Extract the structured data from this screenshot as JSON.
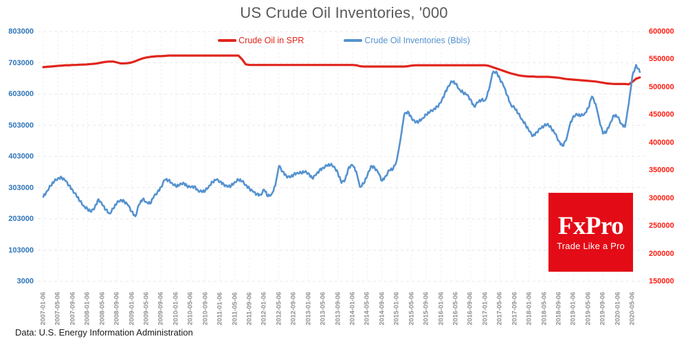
{
  "title": "US Crude Oil Inventories, '000",
  "legend": {
    "items": [
      {
        "label": "Crude Oil in SPR",
        "color": "#e0251c"
      },
      {
        "label": "Crude Oil Inventories (Bbls)",
        "color": "#5592cf"
      }
    ]
  },
  "footer": "Data: U.S. Energy Information Administration",
  "logo": {
    "name": "FxPro",
    "tagline": "Trade Like a Pro",
    "bg_color": "#e30b16"
  },
  "axes": {
    "left": {
      "color": "#2d74b8",
      "ticks": [
        "803000",
        "703000",
        "603000",
        "503000",
        "403000",
        "303000",
        "203000",
        "103000",
        "3000"
      ]
    },
    "right": {
      "color": "#fe1a0e",
      "ticks": [
        "600000",
        "550000",
        "500000",
        "450000",
        "400000",
        "350000",
        "300000",
        "250000",
        "200000",
        "150000"
      ]
    },
    "x": {
      "color": "#8f8f8f",
      "labels": [
        "2007-01-06",
        "2007-05-06",
        "2007-09-06",
        "2008-01-06",
        "2008-05-06",
        "2008-09-06",
        "2009-01-06",
        "2009-05-06",
        "2009-09-06",
        "2010-01-06",
        "2010-05-06",
        "2010-09-06",
        "2011-01-06",
        "2011-05-06",
        "2011-09-06",
        "2012-01-06",
        "2012-05-06",
        "2012-09-06",
        "2013-01-06",
        "2013-05-06",
        "2013-09-06",
        "2014-01-06",
        "2014-05-06",
        "2014-09-06",
        "2015-01-06",
        "2015-05-06",
        "2015-09-06",
        "2016-01-06",
        "2016-05-06",
        "2016-09-06",
        "2017-01-06",
        "2017-05-06",
        "2017-09-06",
        "2018-01-06",
        "2018-05-06",
        "2018-09-06",
        "2019-01-06",
        "2019-05-06",
        "2019-09-06",
        "2020-01-06",
        "2020-05-06"
      ]
    }
  },
  "chart_data": {
    "type": "line",
    "title": "US Crude Oil Inventories, '000",
    "unit": "thousand barrels",
    "x_monthly_start": "2007-01",
    "x_monthly_end": "2020-07",
    "left_range": [
      3000,
      803000
    ],
    "right_range": [
      150000,
      600000
    ],
    "grid": true,
    "legend_position": "top",
    "series": [
      {
        "name": "Crude Oil in SPR",
        "axis": "left",
        "color": "#e0251c",
        "values": [
          689000,
          690000,
          691000,
          692000,
          693000,
          694000,
          695000,
          695000,
          696000,
          696000,
          697000,
          697000,
          698000,
          699000,
          700000,
          702000,
          704000,
          706000,
          707000,
          707000,
          704000,
          701000,
          701000,
          702000,
          704000,
          708000,
          713000,
          717000,
          720000,
          722000,
          723000,
          724000,
          724000,
          725000,
          726000,
          726000,
          726000,
          726000,
          726000,
          726000,
          726000,
          726000,
          726000,
          726000,
          726000,
          726000,
          726000,
          726000,
          726000,
          726000,
          726000,
          726000,
          726000,
          726000,
          714000,
          698000,
          696000,
          696000,
          696000,
          696000,
          696000,
          696000,
          696000,
          696000,
          696000,
          696000,
          696000,
          696000,
          696000,
          696000,
          696000,
          696000,
          696000,
          696000,
          696000,
          696000,
          696000,
          696000,
          696000,
          696000,
          696000,
          696000,
          696000,
          696000,
          696000,
          695000,
          692000,
          691000,
          691000,
          691000,
          691000,
          691000,
          691000,
          691000,
          691000,
          691000,
          691000,
          691000,
          691000,
          692000,
          694000,
          695000,
          695000,
          695000,
          695000,
          695000,
          695000,
          695000,
          695000,
          695000,
          695000,
          695000,
          695000,
          695000,
          695000,
          695000,
          695000,
          695000,
          695000,
          695000,
          695000,
          693000,
          689000,
          685000,
          681000,
          677000,
          673000,
          669000,
          666000,
          663000,
          661000,
          660000,
          659000,
          659000,
          658000,
          658000,
          658000,
          658000,
          657000,
          656000,
          655000,
          653000,
          651000,
          650000,
          649000,
          648000,
          647000,
          646000,
          645000,
          644000,
          643000,
          641000,
          639000,
          637000,
          636000,
          635000,
          635000,
          635000,
          635000,
          634000,
          642000,
          652000,
          656000
        ]
      },
      {
        "name": "Crude Oil Inventories (Bbls)",
        "axis": "right",
        "color": "#5592cf",
        "values": [
          302000,
          313000,
          322000,
          330000,
          336000,
          337000,
          331000,
          323000,
          314000,
          304000,
          294000,
          286000,
          280000,
          275000,
          284000,
          298000,
          288000,
          279000,
          272000,
          281000,
          291000,
          297000,
          294000,
          287000,
          276000,
          267000,
          288000,
          298000,
          293000,
          290000,
          302000,
          311000,
          320000,
          333000,
          332000,
          327000,
          321000,
          323000,
          328000,
          322000,
          319000,
          321000,
          314000,
          311000,
          313000,
          322000,
          329000,
          333000,
          330000,
          325000,
          320000,
          322000,
          329000,
          333000,
          330000,
          324000,
          317000,
          311000,
          307000,
          306000,
          315000,
          303000,
          307000,
          322000,
          358000,
          348000,
          340000,
          337000,
          342000,
          346000,
          345000,
          347000,
          345000,
          336000,
          341000,
          350000,
          355000,
          358000,
          360000,
          357000,
          345000,
          327000,
          334000,
          356000,
          359000,
          348000,
          320000,
          326000,
          340000,
          358000,
          355000,
          345000,
          331000,
          340000,
          350000,
          352000,
          368000,
          405000,
          450000,
          456000,
          445000,
          436000,
          438000,
          444000,
          450000,
          455000,
          460000,
          465000,
          472000,
          488000,
          502000,
          510000,
          506000,
          496000,
          490000,
          486000,
          478000,
          465000,
          472000,
          477000,
          476000,
          494000,
          525000,
          528000,
          515000,
          502000,
          485000,
          468000,
          462000,
          452000,
          442000,
          432000,
          420000,
          412000,
          419000,
          425000,
          430000,
          434000,
          425000,
          416000,
          403000,
          394000,
          404000,
          432000,
          448000,
          450000,
          448000,
          452000,
          462000,
          483000,
          470000,
          441000,
          416000,
          420000,
          436000,
          449000,
          446000,
          434000,
          428000,
          470000,
          520000,
          540000,
          527000
        ]
      }
    ]
  }
}
